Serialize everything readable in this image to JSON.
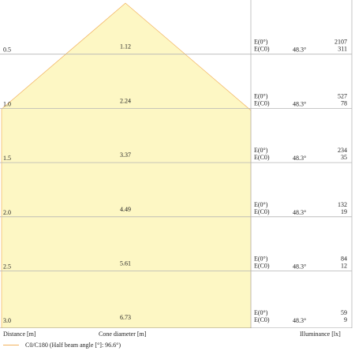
{
  "beam": {
    "half_angle_deg": 48.3,
    "fill_color": "#fdf7c4",
    "edge_color": "#f2b25e"
  },
  "rows": [
    {
      "distance": "0.5",
      "cone_diameter": "1.12",
      "e0_label": "E(0°)",
      "ec0_label": "E(C0)",
      "angle": "48.3°",
      "e0_value": "2107",
      "ec0_value": "311"
    },
    {
      "distance": "1.0",
      "cone_diameter": "2.24",
      "e0_label": "E(0°)",
      "ec0_label": "E(C0)",
      "angle": "48.3°",
      "e0_value": "527",
      "ec0_value": "78"
    },
    {
      "distance": "1.5",
      "cone_diameter": "3.37",
      "e0_label": "E(0°)",
      "ec0_label": "E(C0)",
      "angle": "48.3°",
      "e0_value": "234",
      "ec0_value": "35"
    },
    {
      "distance": "2.0",
      "cone_diameter": "4.49",
      "e0_label": "E(0°)",
      "ec0_label": "E(C0)",
      "angle": "48.3°",
      "e0_value": "132",
      "ec0_value": "19"
    },
    {
      "distance": "2.5",
      "cone_diameter": "5.61",
      "e0_label": "E(0°)",
      "ec0_label": "E(C0)",
      "angle": "48.3°",
      "e0_value": "84",
      "ec0_value": "12"
    },
    {
      "distance": "3.0",
      "cone_diameter": "6.73",
      "e0_label": "E(0°)",
      "ec0_label": "E(C0)",
      "angle": "48.3°",
      "e0_value": "59",
      "ec0_value": "9"
    }
  ],
  "footer": {
    "distance_label": "Distance [m]",
    "cone_label": "Cone diameter [m]",
    "illuminance_label": "Illuminance [lx]"
  },
  "legend": {
    "entry": "C0/C180 (Half beam angle [°]: 96.6°)"
  }
}
